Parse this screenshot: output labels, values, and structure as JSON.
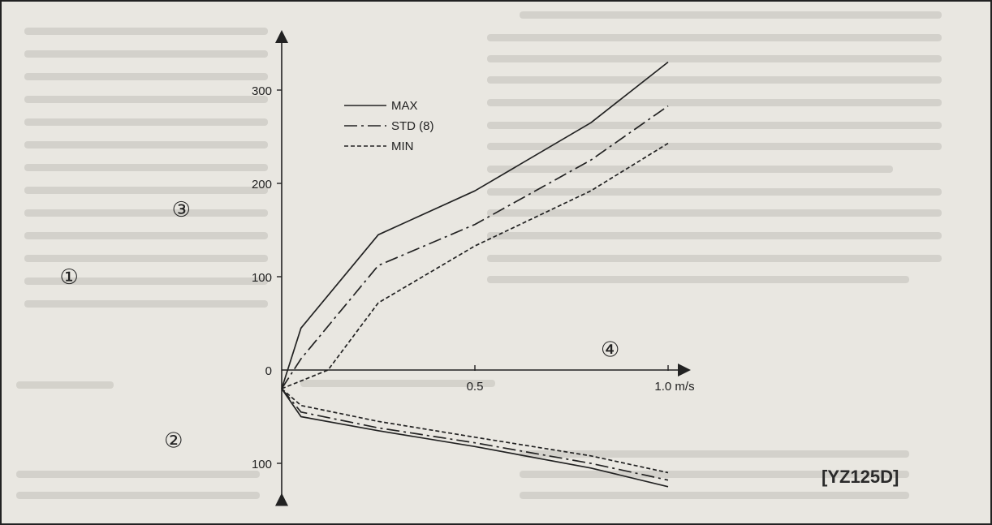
{
  "chart_data": {
    "type": "line",
    "xlabel": "m/s",
    "xlim": [
      0,
      1.0
    ],
    "ylim": [
      -130,
      340
    ],
    "x_ticks": [
      {
        "value": 0.5,
        "label": "0.5"
      },
      {
        "value": 1.0,
        "label": "1.0 m/s"
      }
    ],
    "y_ticks": [
      {
        "value": 300,
        "label": "300"
      },
      {
        "value": 200,
        "label": "200"
      },
      {
        "value": 100,
        "label": "100"
      },
      {
        "value": 0,
        "label": "0"
      },
      {
        "value": -100,
        "label": "100"
      }
    ],
    "legend_position": "top-left",
    "series": [
      {
        "name": "MAX",
        "style": "solid",
        "points": [
          [
            0,
            -20
          ],
          [
            0.05,
            45
          ],
          [
            0.25,
            145
          ],
          [
            0.5,
            192
          ],
          [
            0.8,
            265
          ],
          [
            1.0,
            330
          ],
          [
            0.05,
            -50
          ],
          [
            0.25,
            -65
          ],
          [
            0.5,
            -82
          ],
          [
            0.8,
            -105
          ],
          [
            1.0,
            -125
          ]
        ]
      },
      {
        "name": "STD (8)",
        "style": "dashdot",
        "points": [
          [
            0,
            -20
          ],
          [
            0.05,
            12
          ],
          [
            0.25,
            112
          ],
          [
            0.5,
            156
          ],
          [
            0.8,
            225
          ],
          [
            1.0,
            283
          ],
          [
            0.05,
            -45
          ],
          [
            0.25,
            -62
          ],
          [
            0.5,
            -78
          ],
          [
            0.8,
            -100
          ],
          [
            1.0,
            -118
          ]
        ]
      },
      {
        "name": "MIN",
        "style": "dashed",
        "points": [
          [
            0,
            -20
          ],
          [
            0.12,
            0
          ],
          [
            0.25,
            72
          ],
          [
            0.5,
            133
          ],
          [
            0.8,
            192
          ],
          [
            1.0,
            243
          ],
          [
            0.05,
            -38
          ],
          [
            0.25,
            -55
          ],
          [
            0.5,
            -72
          ],
          [
            0.8,
            -92
          ],
          [
            1.0,
            -110
          ]
        ]
      }
    ],
    "annotations": [
      {
        "text": "①",
        "x": -0.55,
        "y": 100
      },
      {
        "text": "②",
        "x": -0.28,
        "y": -75
      },
      {
        "text": "③",
        "x": -0.26,
        "y": 172
      },
      {
        "text": "④",
        "x": 0.85,
        "y": 22
      }
    ]
  },
  "figure_code": "[YZ125D]"
}
